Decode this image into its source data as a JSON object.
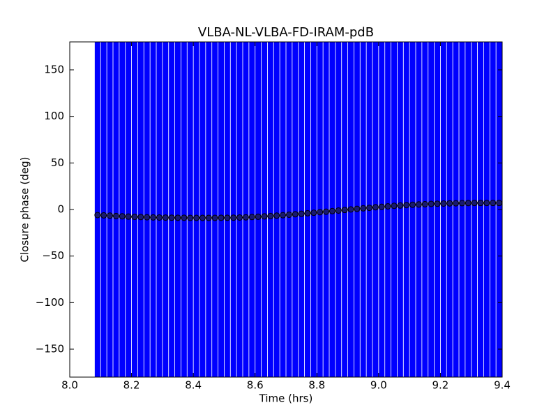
{
  "chart_data": {
    "type": "errorbar",
    "title": "VLBA-NL-VLBA-FD-IRAM-pdB",
    "x_label": "Time (hrs)",
    "y_label": "Closure phase (deg)",
    "xlim": [
      8.0,
      9.4
    ],
    "ylim": [
      -180,
      180
    ],
    "xticks": [
      {
        "value": 8.0,
        "label": "8.0"
      },
      {
        "value": 8.2,
        "label": "8.2"
      },
      {
        "value": 8.4,
        "label": "8.4"
      },
      {
        "value": 8.6,
        "label": "8.6"
      },
      {
        "value": 8.8,
        "label": "8.8"
      },
      {
        "value": 9.0,
        "label": "9.0"
      },
      {
        "value": 9.2,
        "label": "9.2"
      },
      {
        "value": 9.4,
        "label": "9.4"
      }
    ],
    "yticks": [
      {
        "value": -150,
        "label": "−150"
      },
      {
        "value": -100,
        "label": "−100"
      },
      {
        "value": -50,
        "label": "−50"
      },
      0,
      50,
      100,
      150
    ],
    "series": [
      {
        "color": "#191970",
        "error_color": "#0000ff",
        "yerr": 200,
        "x": [
          8.09,
          8.11,
          8.13,
          8.15,
          8.17,
          8.19,
          8.21,
          8.23,
          8.25,
          8.27,
          8.29,
          8.31,
          8.33,
          8.35,
          8.37,
          8.39,
          8.41,
          8.43,
          8.45,
          8.47,
          8.49,
          8.51,
          8.53,
          8.55,
          8.57,
          8.59,
          8.61,
          8.63,
          8.65,
          8.67,
          8.69,
          8.71,
          8.73,
          8.75,
          8.77,
          8.79,
          8.81,
          8.83,
          8.85,
          8.87,
          8.89,
          8.91,
          8.93,
          8.95,
          8.97,
          8.99,
          9.01,
          9.03,
          9.05,
          9.07,
          9.09,
          9.11,
          9.13,
          9.15,
          9.17,
          9.19,
          9.21,
          9.23,
          9.25,
          9.27,
          9.29,
          9.31,
          9.33,
          9.35,
          9.37,
          9.39
        ],
        "values": [
          -6,
          -6.3,
          -6.6,
          -7,
          -7.3,
          -7.6,
          -7.9,
          -8.1,
          -8.3,
          -8.5,
          -8.6,
          -8.7,
          -8.8,
          -8.9,
          -8.9,
          -9,
          -9,
          -9,
          -9,
          -9,
          -8.9,
          -8.9,
          -8.8,
          -8.6,
          -8.4,
          -8.1,
          -7.8,
          -7.4,
          -7,
          -6.6,
          -6.1,
          -5.6,
          -5.1,
          -4.6,
          -4,
          -3.5,
          -2.9,
          -2.3,
          -1.7,
          -1.1,
          -0.5,
          0.1,
          0.7,
          1.3,
          1.8,
          2.4,
          2.9,
          3.4,
          3.9,
          4.3,
          4.7,
          5.1,
          5.4,
          5.7,
          6,
          6.2,
          6.4,
          6.6,
          6.7,
          6.8,
          6.9,
          7,
          7,
          7,
          7,
          7
        ]
      }
    ]
  }
}
